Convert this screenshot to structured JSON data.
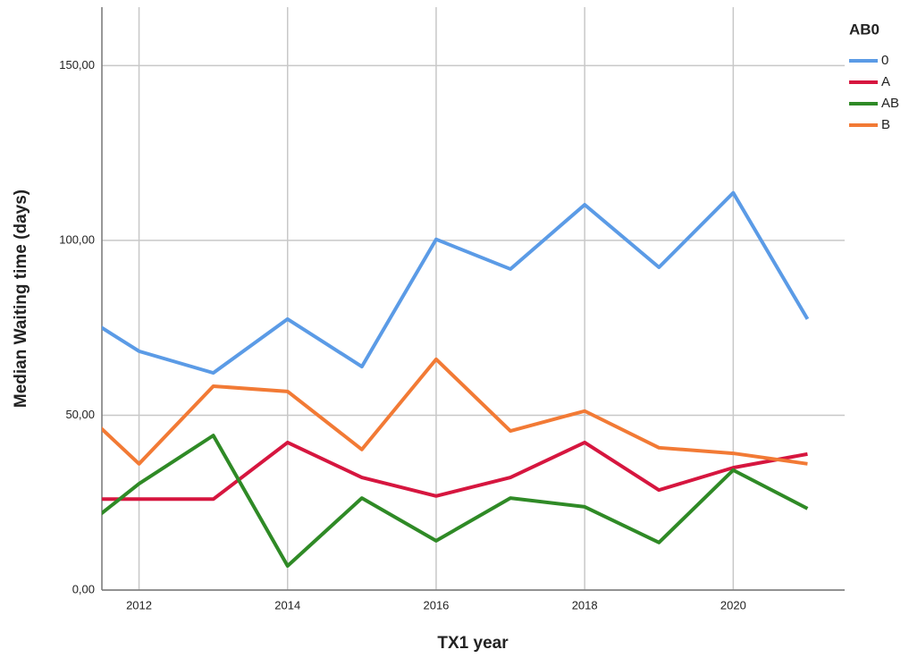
{
  "chart_data": {
    "type": "line",
    "x_label": "TX1 year",
    "y_label": "Median Waiting time (days)",
    "legend_title": "AB0",
    "legend": "right",
    "grid": true,
    "x": [
      2011,
      2012,
      2013,
      2014,
      2015,
      2016,
      2017,
      2018,
      2019,
      2020,
      2021
    ],
    "xlim": [
      2011.5,
      2021.5
    ],
    "xticks": [
      2012,
      2014,
      2016,
      2018,
      2020
    ],
    "ylim": [
      0,
      166.7
    ],
    "yticks": [
      {
        "value": 0,
        "label": "0,00"
      },
      {
        "value": 50,
        "label": "50,00"
      },
      {
        "value": 100,
        "label": "100,00"
      },
      {
        "value": 150,
        "label": "150,00"
      }
    ],
    "series": [
      {
        "name": "0",
        "color": "#5b9be6",
        "values": [
          81.7,
          68.3,
          62.1,
          77.5,
          63.9,
          100.3,
          91.8,
          110.2,
          92.3,
          113.6,
          77.5
        ]
      },
      {
        "name": "A",
        "color": "#d6163f",
        "values": [
          26,
          26,
          26,
          42.2,
          32.2,
          26.9,
          32.2,
          42.2,
          28.6,
          35,
          38.9
        ]
      },
      {
        "name": "AB",
        "color": "#2f8a26",
        "values": [
          13.6,
          30.4,
          44.2,
          6.9,
          26.3,
          14.1,
          26.3,
          23.8,
          13.6,
          34.3,
          23.3
        ]
      },
      {
        "name": "B",
        "color": "#f27a35",
        "values": [
          56,
          36.1,
          58.3,
          56.8,
          40.2,
          66,
          45.5,
          51.2,
          40.7,
          39.1,
          36.1
        ]
      }
    ]
  }
}
